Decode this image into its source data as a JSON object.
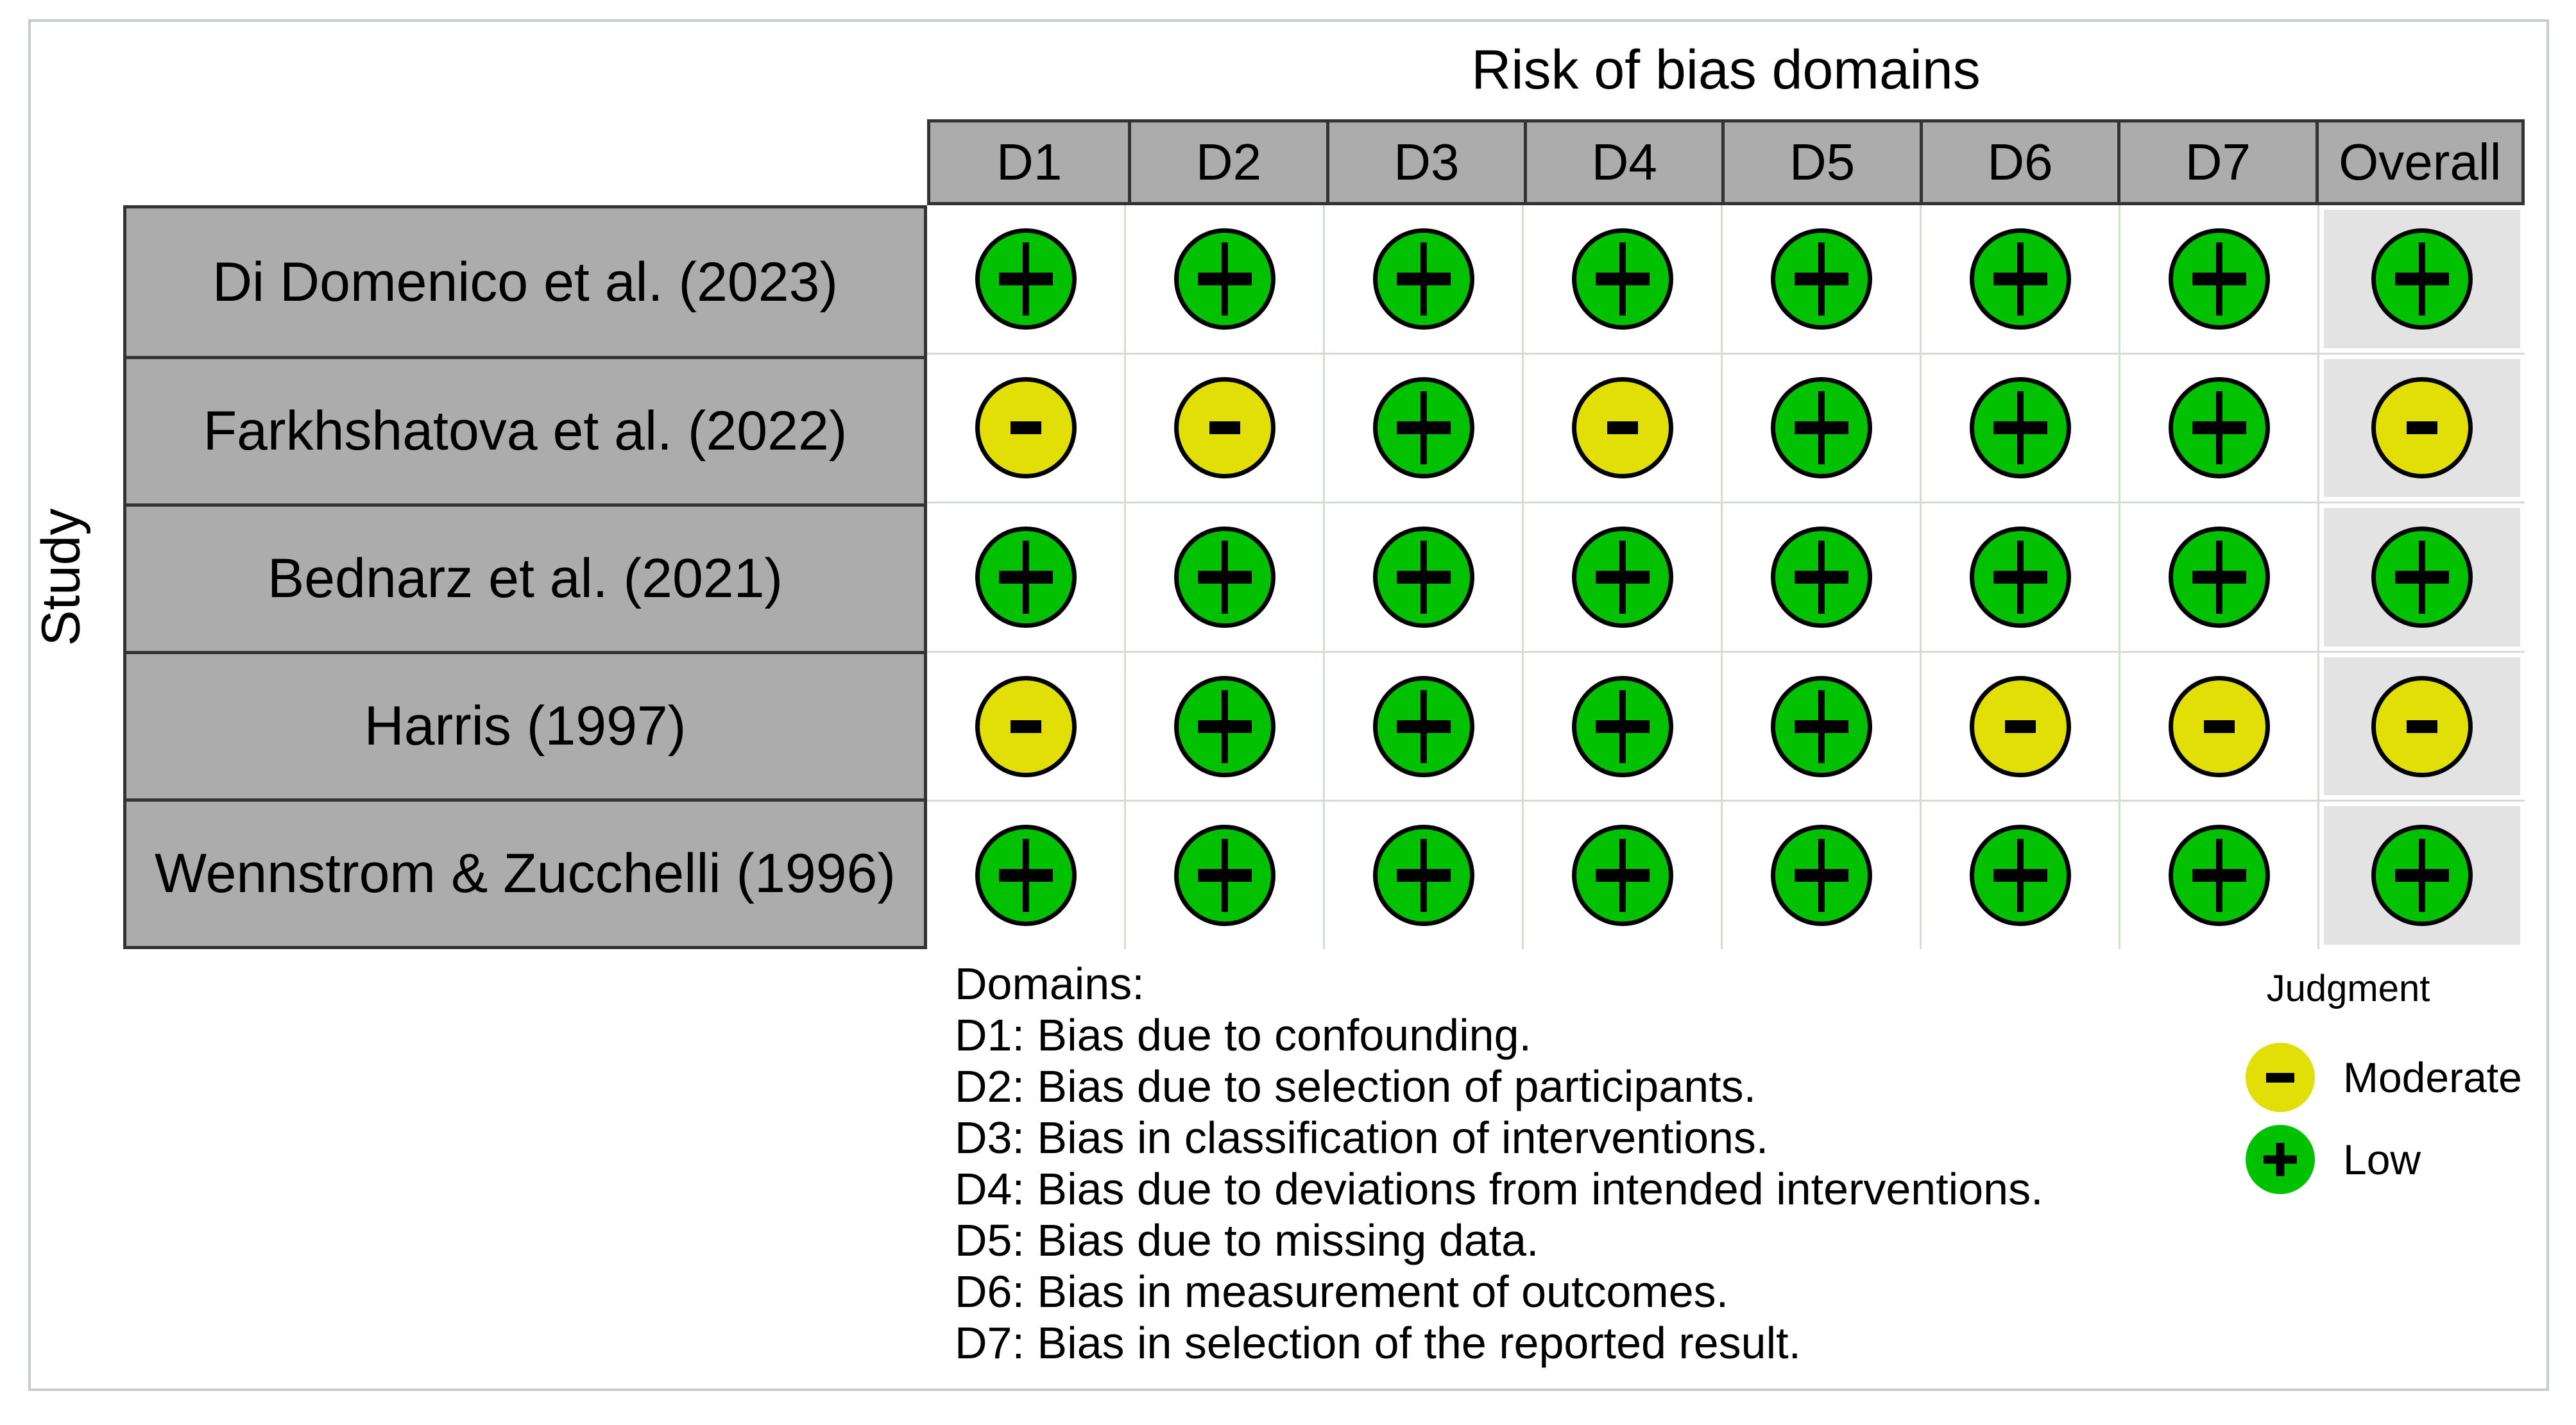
{
  "chart_data": {
    "type": "table",
    "title": "Risk of bias domains",
    "ylabel": "Study",
    "columns": [
      "D1",
      "D2",
      "D3",
      "D4",
      "D5",
      "D6",
      "D7",
      "Overall"
    ],
    "studies": [
      "Di Domenico et al. (2023)",
      "Farkhshatova et al. (2022)",
      "Bednarz et al. (2021)",
      "Harris (1997)",
      "Wennstrom & Zucchelli (1996)"
    ],
    "judgments": [
      [
        "Low",
        "Low",
        "Low",
        "Low",
        "Low",
        "Low",
        "Low",
        "Low"
      ],
      [
        "Moderate",
        "Moderate",
        "Low",
        "Moderate",
        "Low",
        "Low",
        "Low",
        "Moderate"
      ],
      [
        "Low",
        "Low",
        "Low",
        "Low",
        "Low",
        "Low",
        "Low",
        "Low"
      ],
      [
        "Moderate",
        "Low",
        "Low",
        "Low",
        "Low",
        "Moderate",
        "Moderate",
        "Moderate"
      ],
      [
        "Low",
        "Low",
        "Low",
        "Low",
        "Low",
        "Low",
        "Low",
        "Low"
      ]
    ],
    "symbol_map": {
      "Low": "+",
      "Moderate": "-"
    },
    "color_map": {
      "Low": "#02C100",
      "Moderate": "#E2DF07"
    },
    "legend": {
      "title": "Judgment",
      "items": [
        {
          "label": "Moderate",
          "symbol": "-",
          "color": "#E2DF07"
        },
        {
          "label": "Low",
          "symbol": "+",
          "color": "#02C100"
        }
      ]
    },
    "notes": {
      "heading": "Domains:",
      "lines": [
        "D1: Bias due to confounding.",
        "D2: Bias due to selection of participants.",
        "D3: Bias in classification of interventions.",
        "D4: Bias due to deviations from intended interventions.",
        "D5: Bias due to missing data.",
        "D6: Bias in measurement of outcomes.",
        "D7: Bias in selection of the reported result."
      ]
    },
    "layout": {
      "legend_position": "bottom-right",
      "header_fill": "#ACACAC",
      "overall_column_fill": "#E3E3E3",
      "grid_line_color": "#D5DBD5",
      "frame_color": "#C9CDC9"
    }
  }
}
